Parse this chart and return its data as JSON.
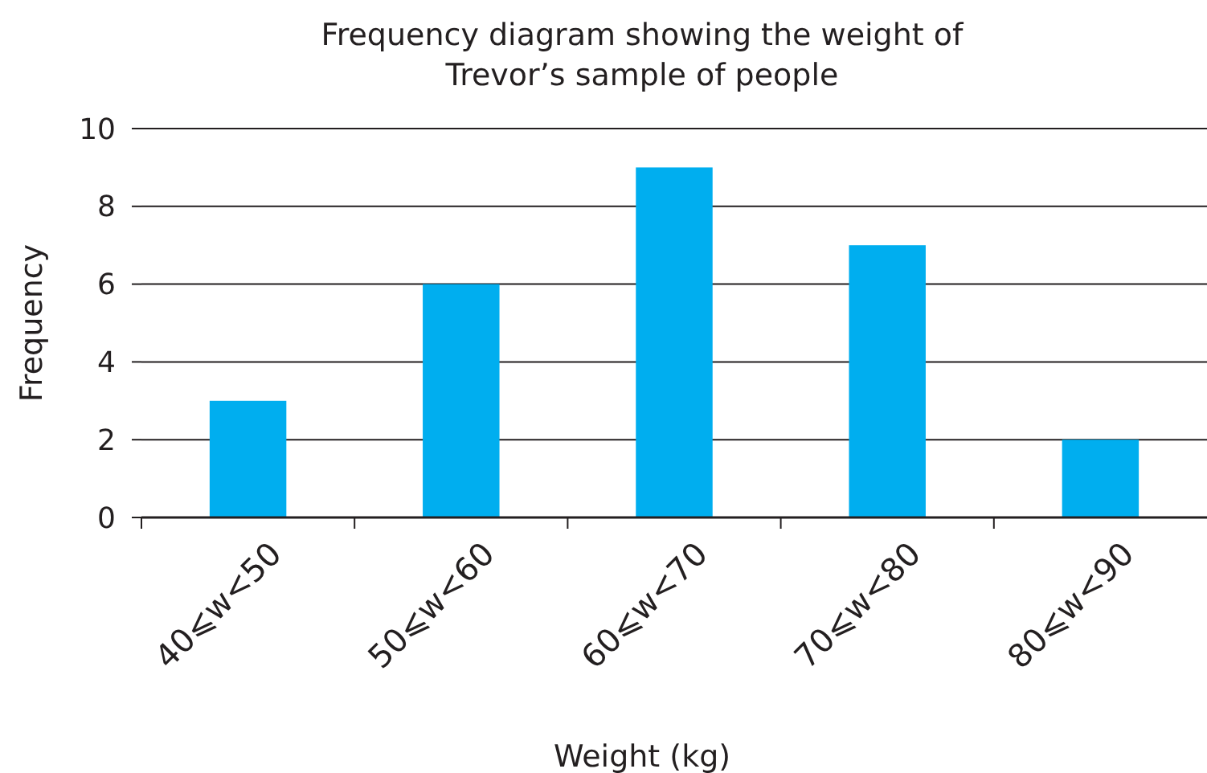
{
  "chart_data": {
    "type": "bar",
    "title": "Frequency diagram showing the weight of\nTrevor’s sample of people",
    "xlabel": "Weight (kg)",
    "ylabel": "Frequency",
    "categories": [
      "40⩽w<50",
      "50⩽w<60",
      "60⩽w<70",
      "70⩽w<80",
      "80⩽w<90"
    ],
    "values": [
      3,
      6,
      9,
      7,
      2
    ],
    "color": "#00aeef",
    "ylim": [
      0,
      10
    ],
    "yticks": [
      0,
      2,
      4,
      6,
      8,
      10
    ],
    "grid": "y"
  }
}
